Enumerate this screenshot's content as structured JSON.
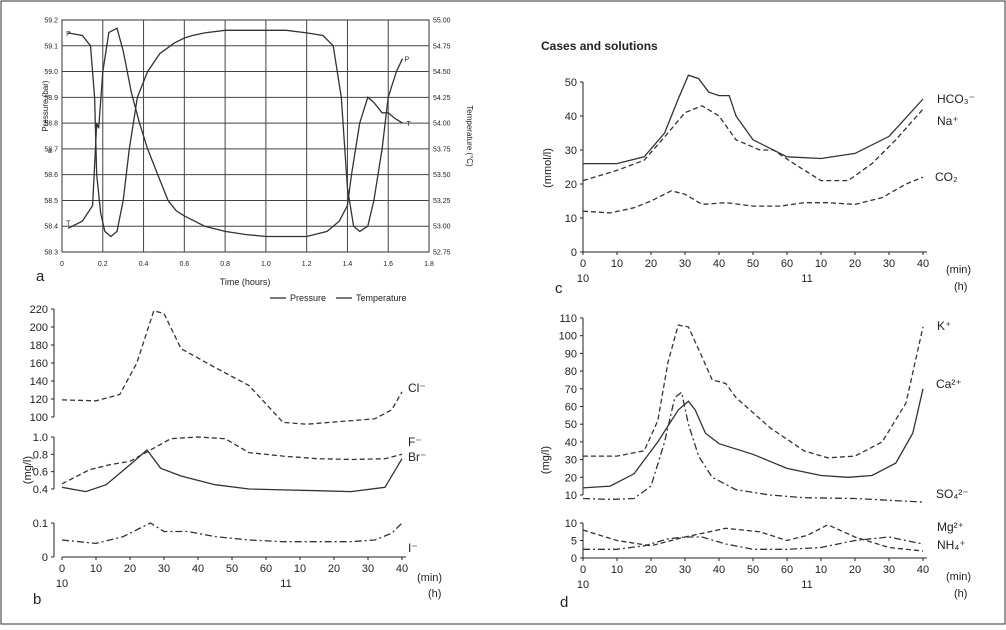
{
  "chart_data": [
    {
      "panel": "a",
      "type": "line",
      "xlabel": "Time (hours)",
      "ylabel": "Pressure (bar)",
      "y2label": "Temperature (°C)",
      "xlim": [
        0,
        1.8
      ],
      "ylim": [
        58.3,
        59.2
      ],
      "y2lim": [
        52.75,
        55.0
      ],
      "xticks": [
        "0",
        "0.2",
        "0.4",
        "0.6",
        "0.8",
        "1.0",
        "1.2",
        "1.4",
        "1.6",
        "1.8"
      ],
      "yticks": [
        "58.3",
        "58.4",
        "58.5",
        "58.6",
        "58.7",
        "58.8",
        "58.9",
        "59.0",
        "59.1",
        "59.2"
      ],
      "y2ticks": [
        "52.75",
        "53.00",
        "53.25",
        "53.50",
        "53.75",
        "54.00",
        "54.25",
        "54.50",
        "54.75",
        "55.00"
      ],
      "grid": true,
      "stray_label": "a",
      "legend": [
        "Pressure",
        "Temperature"
      ],
      "series": [
        {
          "name": "Pressure",
          "end_labels": [
            "P",
            "P"
          ],
          "x": [
            0.03,
            0.1,
            0.14,
            0.16,
            0.17,
            0.19,
            0.21,
            0.24,
            0.27,
            0.3,
            0.33,
            0.37,
            0.42,
            0.48,
            0.55,
            0.6,
            0.64,
            0.7,
            0.8,
            0.9,
            1.0,
            1.1,
            1.2,
            1.28,
            1.33,
            1.37,
            1.4,
            1.43,
            1.46,
            1.5,
            1.53,
            1.57,
            1.6,
            1.64,
            1.67
          ],
          "y": [
            59.15,
            59.14,
            59.1,
            58.9,
            58.6,
            58.45,
            58.38,
            58.36,
            58.38,
            58.5,
            58.7,
            58.9,
            59.0,
            59.07,
            59.11,
            59.13,
            59.14,
            59.15,
            59.16,
            59.16,
            59.16,
            59.16,
            59.15,
            59.14,
            59.1,
            58.9,
            58.55,
            58.4,
            58.38,
            58.4,
            58.5,
            58.7,
            58.9,
            59.0,
            59.05
          ]
        },
        {
          "name": "Temperature",
          "end_labels": [
            "T",
            "T"
          ],
          "x": [
            0.03,
            0.1,
            0.15,
            0.17,
            0.18,
            0.2,
            0.23,
            0.27,
            0.3,
            0.34,
            0.38,
            0.42,
            0.47,
            0.52,
            0.56,
            0.6,
            0.65,
            0.7,
            0.8,
            0.9,
            1.0,
            1.1,
            1.2,
            1.3,
            1.36,
            1.4,
            1.42,
            1.46,
            1.5,
            1.53,
            1.57,
            1.6,
            1.63,
            1.67
          ],
          "y": [
            52.98,
            53.05,
            53.2,
            54.0,
            53.95,
            54.5,
            54.88,
            54.92,
            54.7,
            54.3,
            54.0,
            53.75,
            53.5,
            53.25,
            53.15,
            53.1,
            53.05,
            53.0,
            52.95,
            52.92,
            52.9,
            52.9,
            52.9,
            52.95,
            53.05,
            53.2,
            53.5,
            54.0,
            54.25,
            54.2,
            54.1,
            54.1,
            54.05,
            54.0
          ]
        }
      ]
    },
    {
      "panel": "b",
      "type": "line",
      "ylabel": "(mg/l)",
      "xlabel_min": "(min)",
      "xlabel_h": "(h)",
      "hour_labels": [
        "10",
        "11"
      ],
      "xticks": [
        "0",
        "10",
        "20",
        "30",
        "40",
        "50",
        "60",
        "10",
        "20",
        "30",
        "40"
      ],
      "yticks_top": [
        "100",
        "120",
        "140",
        "160",
        "180",
        "200",
        "220"
      ],
      "yticks_mid": [
        "0.4",
        "0.6",
        "0.8",
        "1.0"
      ],
      "yticks_bottom": [
        "0",
        "0.1"
      ],
      "series": [
        {
          "name": "Cl⁻",
          "axis": "top",
          "x": [
            0,
            10,
            17,
            22,
            27,
            30,
            35,
            45,
            55,
            65,
            72,
            82,
            92,
            97,
            100
          ],
          "y": [
            119,
            118,
            125,
            160,
            218,
            215,
            176,
            155,
            135,
            94,
            92,
            95,
            98,
            108,
            128
          ]
        },
        {
          "name": "F⁻",
          "axis": "mid",
          "x": [
            0,
            8,
            14,
            20,
            26,
            32,
            40,
            48,
            55,
            65,
            75,
            85,
            95,
            100
          ],
          "y": [
            0.46,
            0.62,
            0.68,
            0.72,
            0.85,
            0.98,
            1.0,
            0.98,
            0.82,
            0.78,
            0.75,
            0.74,
            0.75,
            0.8
          ]
        },
        {
          "name": "Br⁻",
          "axis": "mid",
          "x": [
            0,
            7,
            13,
            20,
            25,
            29,
            35,
            45,
            55,
            65,
            75,
            85,
            95,
            100
          ],
          "y": [
            0.42,
            0.37,
            0.45,
            0.68,
            0.85,
            0.64,
            0.55,
            0.45,
            0.4,
            0.39,
            0.38,
            0.37,
            0.42,
            0.75
          ]
        },
        {
          "name": "I⁻",
          "axis": "bottom",
          "x": [
            0,
            10,
            18,
            26,
            30,
            37,
            45,
            55,
            65,
            75,
            85,
            92,
            97,
            100
          ],
          "y": [
            0.05,
            0.04,
            0.06,
            0.1,
            0.075,
            0.075,
            0.06,
            0.05,
            0.045,
            0.045,
            0.045,
            0.05,
            0.07,
            0.1
          ]
        }
      ]
    },
    {
      "panel": "c",
      "type": "line",
      "title": "Cases and solutions",
      "ylabel": "(mmol/l)",
      "xlabel_min": "(min)",
      "xlabel_h": "(h)",
      "hour_labels": [
        "10",
        "11"
      ],
      "xticks": [
        "0",
        "10",
        "20",
        "30",
        "40",
        "50",
        "60",
        "10",
        "20",
        "30",
        "40"
      ],
      "yticks": [
        "0",
        "10",
        "20",
        "30",
        "40",
        "50"
      ],
      "ylim": [
        0,
        50
      ],
      "series": [
        {
          "name": "HCO₃⁻",
          "x": [
            0,
            10,
            18,
            24,
            28,
            31,
            34,
            37,
            40,
            43,
            45,
            50,
            60,
            70,
            80,
            90,
            100
          ],
          "y": [
            26,
            26,
            28,
            35,
            45,
            52,
            51,
            47,
            46,
            46,
            40,
            33,
            28,
            27.5,
            29,
            34,
            45
          ]
        },
        {
          "name": "Na⁺",
          "x": [
            0,
            10,
            18,
            25,
            30,
            35,
            40,
            45,
            52,
            56,
            62,
            70,
            78,
            85,
            92,
            100
          ],
          "y": [
            21,
            24,
            27,
            35,
            41,
            43,
            40,
            33,
            30,
            30,
            26,
            21,
            21,
            26,
            33,
            42
          ]
        },
        {
          "name": "CO₂",
          "x": [
            0,
            8,
            15,
            20,
            26,
            30,
            35,
            42,
            50,
            58,
            65,
            72,
            80,
            88,
            95,
            100
          ],
          "y": [
            12,
            11.5,
            13,
            15,
            18,
            17,
            14,
            14.5,
            13.5,
            13.5,
            14.5,
            14.5,
            14,
            16,
            20,
            22
          ]
        }
      ]
    },
    {
      "panel": "d",
      "type": "line",
      "ylabel": "(mg/l)",
      "xlabel_min": "(min)",
      "xlabel_h": "(h)",
      "hour_labels": [
        "10",
        "11"
      ],
      "xticks": [
        "0",
        "10",
        "20",
        "30",
        "40",
        "50",
        "60",
        "10",
        "20",
        "30",
        "40"
      ],
      "yticks_top": [
        "10",
        "20",
        "30",
        "40",
        "50",
        "60",
        "70",
        "80",
        "90",
        "100",
        "110"
      ],
      "yticks_bottom": [
        "0",
        "5",
        "10"
      ],
      "series": [
        {
          "name": "K⁺",
          "axis": "top",
          "x": [
            0,
            10,
            18,
            22,
            25,
            28,
            31,
            35,
            38,
            42,
            45,
            55,
            65,
            72,
            80,
            88,
            95,
            100
          ],
          "y": [
            32,
            32,
            35,
            52,
            85,
            106,
            105,
            88,
            75,
            73,
            65,
            48,
            35,
            31,
            32,
            40,
            62,
            105
          ]
        },
        {
          "name": "Ca²⁺",
          "axis": "top",
          "x": [
            0,
            8,
            15,
            22,
            28,
            31,
            33,
            36,
            40,
            50,
            60,
            70,
            78,
            85,
            92,
            97,
            100
          ],
          "y": [
            14,
            15,
            22,
            40,
            58,
            63,
            58,
            45,
            39,
            33,
            25,
            21,
            20,
            21,
            28,
            45,
            70
          ]
        },
        {
          "name": "SO₄²⁻",
          "axis": "top",
          "x": [
            0,
            8,
            15,
            20,
            24,
            27,
            29,
            31,
            34,
            38,
            45,
            55,
            65,
            80,
            90,
            100
          ],
          "y": [
            8,
            7.5,
            8,
            15,
            40,
            65,
            68,
            50,
            32,
            20,
            13,
            10,
            8.5,
            8,
            7,
            6
          ]
        },
        {
          "name": "Mg²⁺",
          "axis": "bottom",
          "x": [
            0,
            10,
            20,
            30,
            42,
            52,
            60,
            66,
            72,
            80,
            90,
            100
          ],
          "y": [
            8,
            5,
            3.5,
            6,
            8.5,
            7.5,
            5,
            6.5,
            9.5,
            6,
            3,
            2
          ]
        },
        {
          "name": "NH₄⁺",
          "axis": "bottom",
          "x": [
            0,
            10,
            18,
            25,
            30,
            35,
            42,
            50,
            60,
            70,
            80,
            90,
            100
          ],
          "y": [
            2.5,
            2.5,
            3.5,
            5.5,
            6,
            6,
            4,
            2.5,
            2.5,
            3,
            5,
            6,
            4
          ]
        }
      ]
    }
  ],
  "panel_letters": [
    "a",
    "b",
    "c",
    "d"
  ]
}
